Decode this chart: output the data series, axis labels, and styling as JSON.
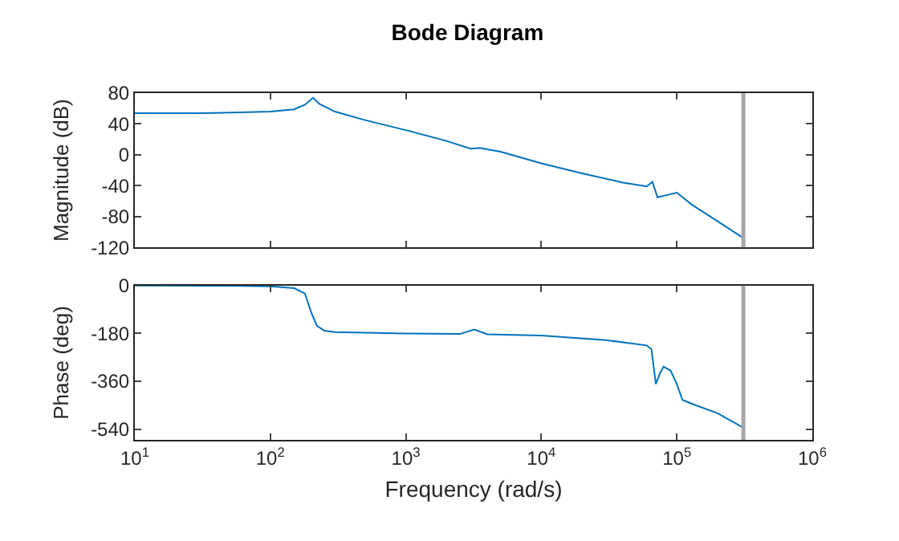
{
  "chart_data": [
    {
      "type": "line",
      "title": "Bode Diagram",
      "ylabel": "Magnitude (dB)",
      "log": "x",
      "marker": "none",
      "line_style": "solid",
      "tick_labels": "y",
      "xlim": [
        10,
        1000000
      ],
      "xticks": [
        {
          "value": 10,
          "label": null
        },
        {
          "value": 100,
          "label": null
        },
        {
          "value": 1000,
          "label": null
        },
        {
          "value": 10000,
          "label": null
        },
        {
          "value": 100000,
          "label": null
        },
        {
          "value": 1000000,
          "label": null
        }
      ],
      "ylim": [
        -120,
        80
      ],
      "yticks": [
        -120,
        -80,
        -40,
        0,
        40,
        80
      ],
      "series": [
        {
          "color": "#0072bd",
          "x": [
            10,
            30,
            60,
            100,
            150,
            180,
            207,
            230,
            300,
            500,
            1000,
            2000,
            3000,
            3500,
            5000,
            10000,
            20000,
            40000,
            60000,
            66000,
            72000,
            85000,
            100000,
            130000,
            200000,
            310000
          ],
          "values": [
            54,
            54,
            55,
            56,
            59,
            65,
            74,
            66,
            56,
            45,
            32,
            18,
            8,
            9,
            4,
            -11,
            -24,
            -36,
            -41,
            -35,
            -55,
            -52,
            -49,
            -65,
            -86,
            -108
          ]
        }
      ],
      "ref_lines": [
        {
          "axis": "x",
          "value": 310000,
          "color": "#a6a6a6"
        }
      ]
    },
    {
      "type": "line",
      "xlabel": "Frequency (rad/s)",
      "ylabel": "Phase (deg)",
      "log": "x",
      "marker": "none",
      "line_style": "solid",
      "xlim": [
        10,
        1000000
      ],
      "xticks": [
        {
          "value": 10,
          "label": "10$^{1}$"
        },
        {
          "value": 100,
          "label": "10$^{2}$"
        },
        {
          "value": 1000,
          "label": "10$^{3}$"
        },
        {
          "value": 10000,
          "label": "10$^{4}$"
        },
        {
          "value": 100000,
          "label": "10$^{5}$"
        },
        {
          "value": 1000000,
          "label": "10$^{6}$"
        }
      ],
      "ylim": [
        -580,
        0
      ],
      "yticks": [
        -540,
        -360,
        -180,
        0
      ],
      "series": [
        {
          "color": "#0072bd",
          "x": [
            10,
            50,
            100,
            150,
            180,
            200,
            220,
            250,
            300,
            1000,
            2500,
            3200,
            4000,
            10000,
            30000,
            60000,
            65000,
            70000,
            75000,
            80000,
            90000,
            100000,
            110000,
            130000,
            200000,
            310000
          ],
          "values": [
            0,
            -1,
            -3,
            -10,
            -30,
            -100,
            -150,
            -170,
            -175,
            -180,
            -182,
            -165,
            -183,
            -188,
            -205,
            -225,
            -240,
            -370,
            -330,
            -305,
            -320,
            -370,
            -430,
            -445,
            -480,
            -534
          ]
        }
      ],
      "ref_lines": [
        {
          "axis": "x",
          "value": 310000,
          "color": "#a6a6a6"
        }
      ]
    }
  ]
}
